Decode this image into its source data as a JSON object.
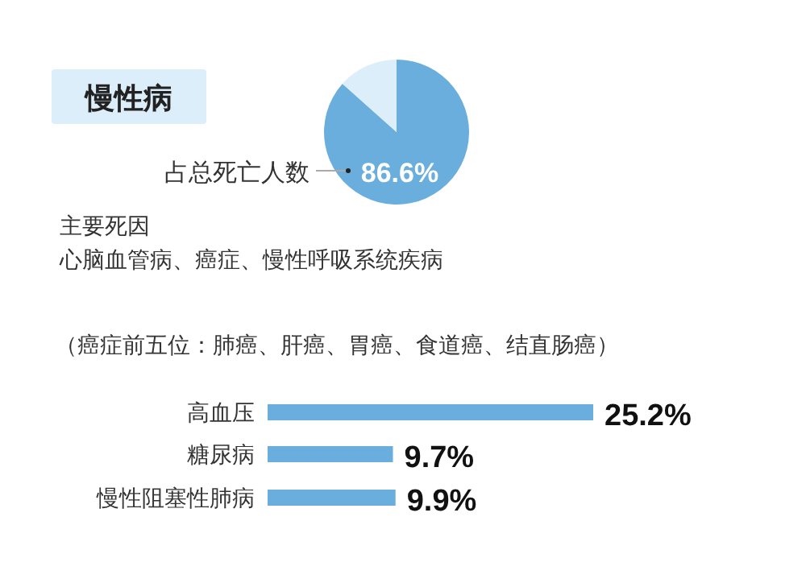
{
  "chart_data": [
    {
      "type": "pie",
      "title": "慢性病",
      "categories": [
        "占总死亡人数",
        null
      ],
      "values": [
        86.6,
        13.4
      ],
      "colors": [
        "#6aaedd",
        "#dceefa"
      ],
      "value_labels": [
        "86.6%",
        null
      ],
      "annotations": [
        "主要死因",
        "心脑血管病、癌症、慢性呼吸系统疾病",
        "（癌症前五位：肺癌、肝癌、胃癌、食道癌、结直肠癌）"
      ]
    },
    {
      "type": "bar",
      "orientation": "horizontal",
      "categories": [
        "高血压",
        "糖尿病",
        "慢性阻塞性肺病"
      ],
      "values": [
        25.2,
        9.7,
        9.9
      ],
      "colors": [
        "#6aaedd",
        "#6aaedd",
        "#6aaedd"
      ],
      "value_labels": [
        "25.2%",
        "9.7%",
        "9.9%"
      ]
    }
  ]
}
